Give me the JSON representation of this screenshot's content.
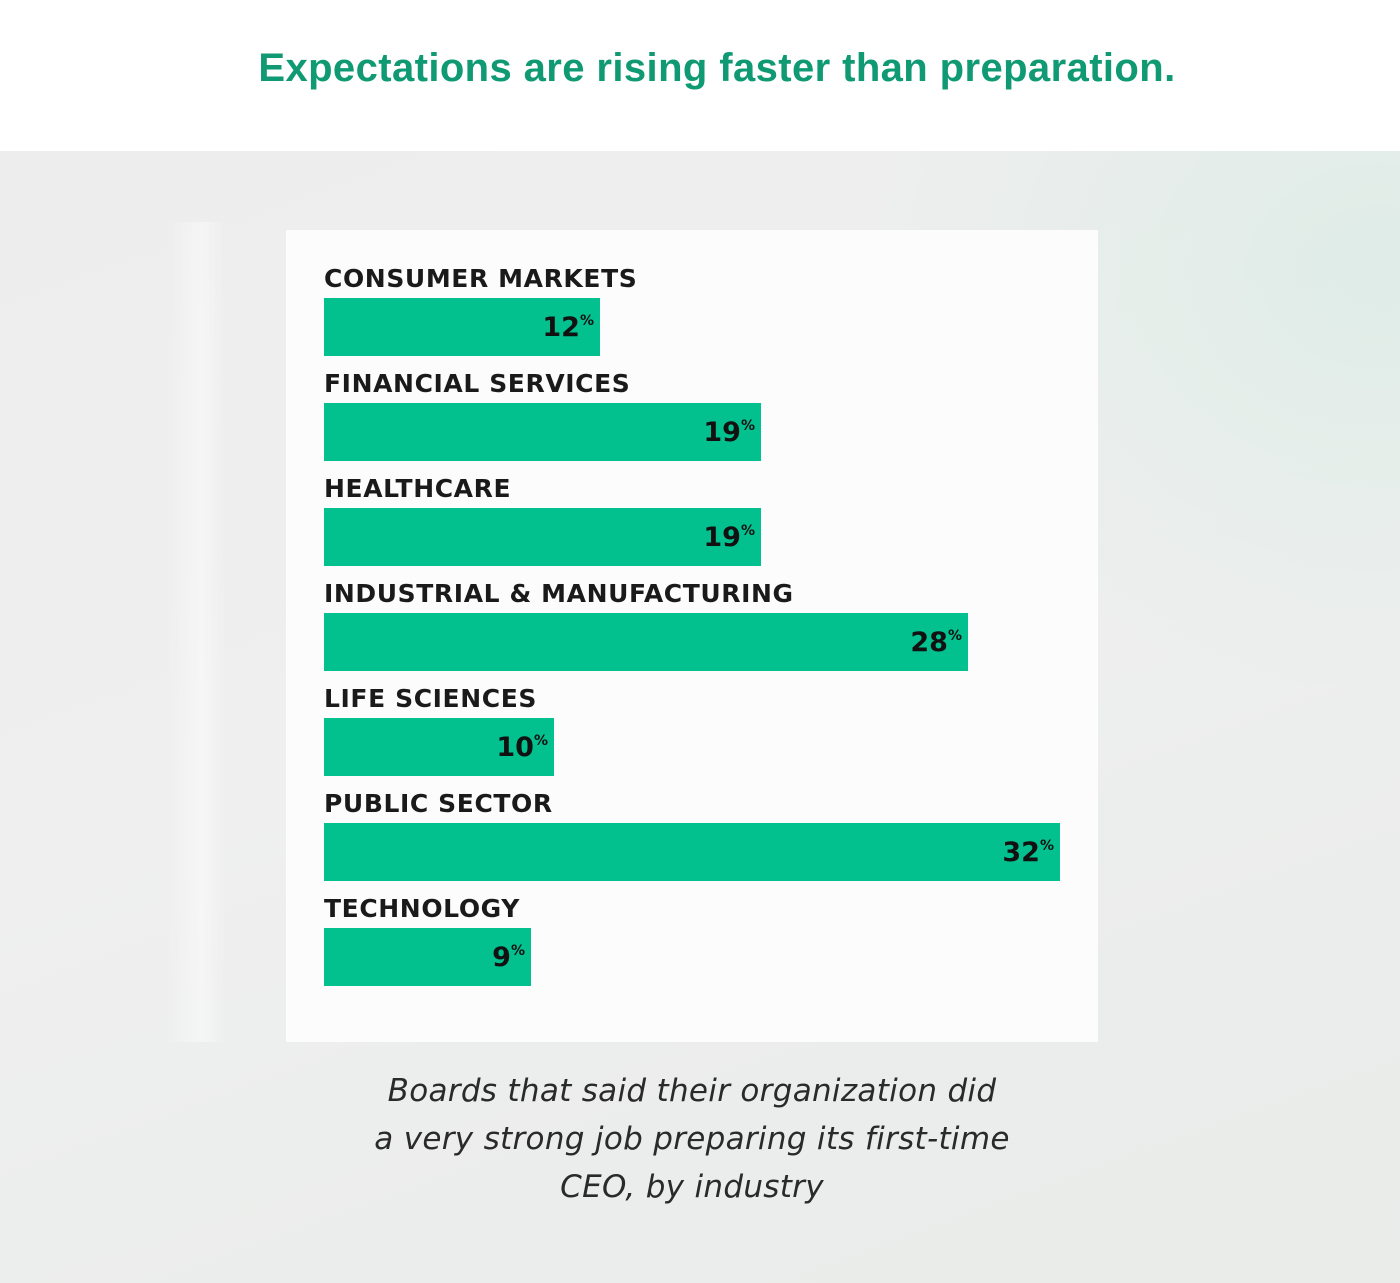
{
  "header": {
    "headline": "Expectations are rising faster than preparation."
  },
  "caption": {
    "lines": [
      "Boards that said their organization did",
      "a very strong job preparing its first-time",
      "CEO, by industry"
    ]
  },
  "colors": {
    "headline": "#0f9a73",
    "bar": "#03c08f",
    "card_background": "#fcfcfc",
    "label_text": "#1a1a1a"
  },
  "chart_data": {
    "type": "bar",
    "orientation": "horizontal",
    "categories": [
      "CONSUMER MARKETS",
      "FINANCIAL SERVICES",
      "HEALTHCARE",
      "INDUSTRIAL & MANUFACTURING",
      "LIFE SCIENCES",
      "PUBLIC SECTOR",
      "TECHNOLOGY"
    ],
    "values": [
      12,
      19,
      19,
      28,
      10,
      32,
      9
    ],
    "value_suffix": "%",
    "xlim": [
      0,
      32
    ],
    "grid": false,
    "legend": "none"
  }
}
